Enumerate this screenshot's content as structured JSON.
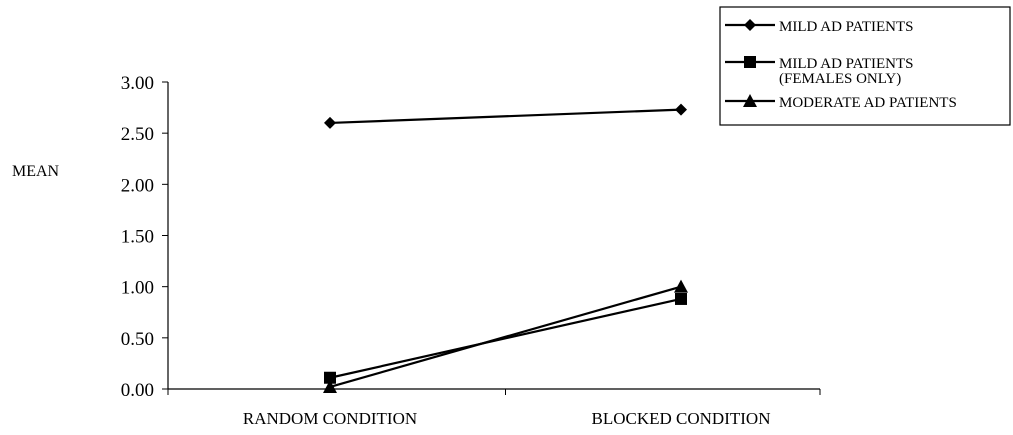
{
  "chart_data": {
    "type": "line",
    "title": "",
    "xlabel": "",
    "ylabel": "MEAN",
    "categories": [
      "RANDOM CONDITION",
      "BLOCKED CONDITION"
    ],
    "ylim": [
      0,
      3
    ],
    "yticks": [
      "0.00",
      "0.50",
      "1.00",
      "1.50",
      "2.00",
      "2.50",
      "3.00"
    ],
    "grid": false,
    "legend_position": "top-right",
    "series": [
      {
        "name": "MILD AD PATIENTS",
        "marker": "diamond",
        "values": [
          2.6,
          2.73
        ]
      },
      {
        "name": "MILD AD PATIENTS (FEMALES ONLY)",
        "name_lines": [
          "MILD AD PATIENTS",
          "(FEMALES ONLY)"
        ],
        "marker": "square",
        "values": [
          0.11,
          0.88
        ]
      },
      {
        "name": "MODERATE AD PATIENTS",
        "marker": "triangle",
        "values": [
          0.02,
          1.0
        ]
      }
    ],
    "line_color": "#000000"
  }
}
